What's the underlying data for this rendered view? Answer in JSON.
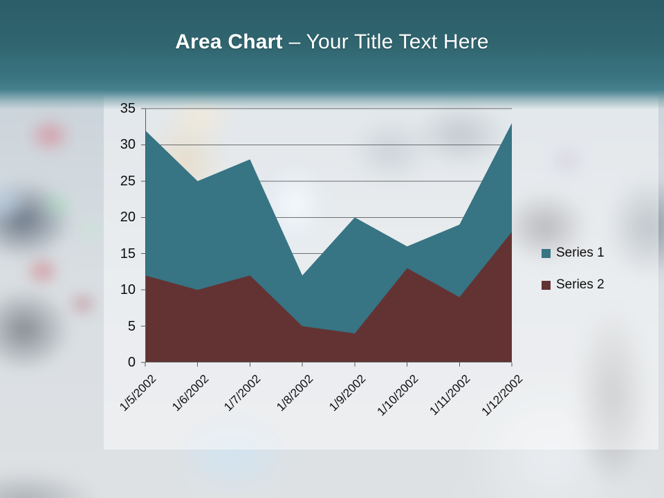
{
  "header": {
    "title_bold": "Area Chart",
    "title_rest": "– Your Title Text Here"
  },
  "chart_data": {
    "type": "area",
    "categories": [
      "1/5/2002",
      "1/6/2002",
      "1/7/2002",
      "1/8/2002",
      "1/9/2002",
      "1/10/2002",
      "1/11/2002",
      "1/12/2002"
    ],
    "series": [
      {
        "name": "Series 1",
        "color": "#377484",
        "values": [
          32,
          25,
          28,
          12,
          20,
          16,
          19,
          33
        ]
      },
      {
        "name": "Series 2",
        "color": "#633333",
        "values": [
          12,
          10,
          12,
          5,
          4,
          13,
          9,
          18
        ]
      }
    ],
    "title": "",
    "xlabel": "",
    "ylabel": "",
    "ylim": [
      0,
      35
    ],
    "ytick_step": 5,
    "grid": true,
    "legend_position": "right",
    "overlap_mode": "overlaid-not-stacked",
    "axis_color": "#595959",
    "label_color": "#0d0d0d"
  }
}
